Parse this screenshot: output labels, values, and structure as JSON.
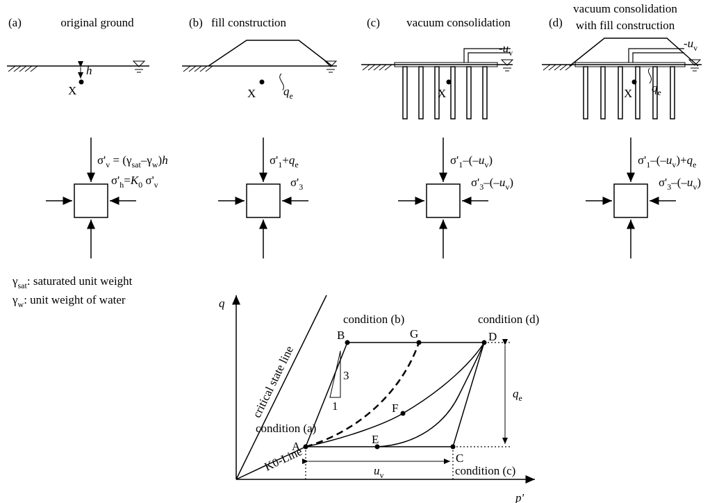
{
  "panels": [
    {
      "tag": "(a)",
      "title": [
        "original ground"
      ],
      "point": "X",
      "depth": "h",
      "vertical_stress": [
        "σ'",
        "v",
        " = (",
        "γ",
        "sat",
        "–",
        "γ",
        "w",
        ")",
        "h"
      ],
      "horizontal_stress": [
        "σ'",
        "h",
        "=",
        "K",
        "0",
        " σ'",
        "v"
      ]
    },
    {
      "tag": "(b)",
      "title": [
        "fill construction"
      ],
      "point": "X",
      "surcharge": [
        "q",
        "e"
      ],
      "vertical_stress": [
        "σ'",
        "1",
        "+",
        "q",
        "e"
      ],
      "horizontal_stress": [
        "σ'",
        "3"
      ]
    },
    {
      "tag": "(c)",
      "title": [
        "vacuum consolidation"
      ],
      "point": "X",
      "suction": [
        "-",
        "u",
        "v"
      ],
      "vertical_stress": [
        "σ'",
        "1",
        "–(–",
        "u",
        "v",
        ")"
      ],
      "horizontal_stress": [
        "σ'",
        "3",
        "–(–",
        "u",
        "v",
        ")"
      ]
    },
    {
      "tag": "(d)",
      "title": [
        "vacuum consolidation",
        "with fill construction"
      ],
      "point": "X",
      "suction": [
        "-",
        "u",
        "v"
      ],
      "surcharge": [
        "q",
        "e"
      ],
      "vertical_stress": [
        "σ'",
        "1",
        "–(–",
        "u",
        "v",
        ")+",
        "q",
        "e"
      ],
      "horizontal_stress": [
        "σ'",
        "3",
        "–(–",
        "u",
        "v",
        ")"
      ]
    }
  ],
  "legend": [
    [
      "γ",
      "sat",
      ": saturated unit weight"
    ],
    [
      "γ",
      "w",
      ": unit weight of water"
    ]
  ],
  "plot": {
    "y_axis": "q",
    "x_axis": "p'",
    "critical_state_line": "critical state line",
    "k0_line": "K0-Line",
    "points": [
      "A",
      "B",
      "C",
      "D",
      "E",
      "F",
      "G"
    ],
    "conditions": [
      "condition (a)",
      "condition (b)",
      "condition (c)",
      "condition (d)"
    ],
    "suction": [
      "u",
      "v"
    ],
    "surcharge": [
      "q",
      "e"
    ],
    "slope": [
      "3",
      "1"
    ]
  }
}
